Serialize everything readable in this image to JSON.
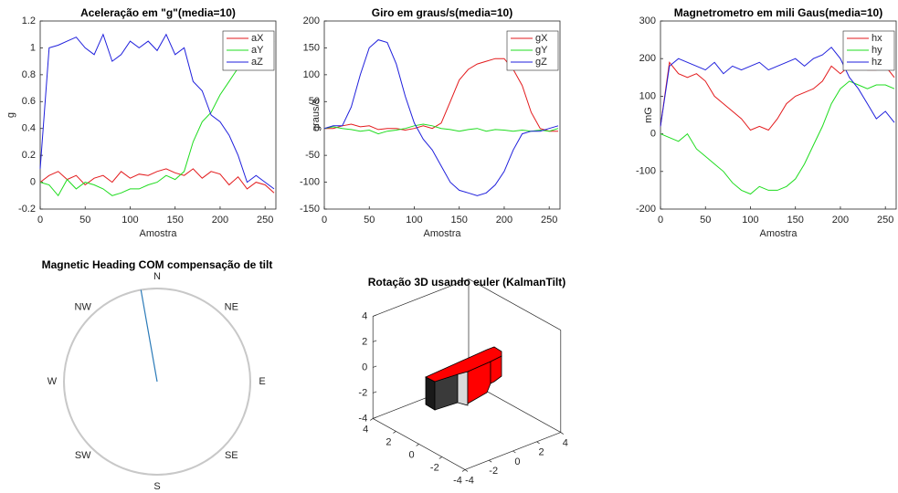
{
  "chart_data": [
    {
      "type": "line",
      "title": "Aceleração em \"g\"(media=10)",
      "xlabel": "Amostra",
      "ylabel": "g",
      "x": [
        0,
        10,
        20,
        30,
        40,
        50,
        60,
        70,
        80,
        90,
        100,
        110,
        120,
        130,
        140,
        150,
        160,
        170,
        180,
        190,
        200,
        210,
        220,
        230,
        240,
        250,
        260
      ],
      "xlim": [
        0,
        262
      ],
      "xticks": [
        0,
        50,
        100,
        150,
        200,
        250
      ],
      "ylim": [
        -0.2,
        1.2
      ],
      "yticks": [
        -0.2,
        0,
        0.2,
        0.4,
        0.6,
        0.8,
        1,
        1.2
      ],
      "legend": "upper right",
      "series": [
        {
          "name": "aX",
          "color": "#e31a1c",
          "values": [
            0,
            0.05,
            0.08,
            0.02,
            0.05,
            -0.02,
            0.03,
            0.05,
            0.0,
            0.08,
            0.03,
            0.06,
            0.05,
            0.08,
            0.1,
            0.07,
            0.05,
            0.1,
            0.03,
            0.08,
            0.06,
            -0.02,
            0.04,
            -0.05,
            0.0,
            -0.02,
            -0.08
          ]
        },
        {
          "name": "aY",
          "color": "#1fdc1f",
          "values": [
            0,
            -0.02,
            -0.1,
            0.02,
            -0.05,
            0.0,
            -0.02,
            -0.05,
            -0.1,
            -0.08,
            -0.05,
            -0.05,
            -0.02,
            0.0,
            0.05,
            0.02,
            0.08,
            0.3,
            0.45,
            0.52,
            0.65,
            0.75,
            0.85,
            0.9,
            0.93,
            1.0,
            1.05
          ]
        },
        {
          "name": "aZ",
          "color": "#1f1fdc",
          "values": [
            0.1,
            1.0,
            1.02,
            1.05,
            1.08,
            1.0,
            0.95,
            1.1,
            0.9,
            0.95,
            1.05,
            1.0,
            1.05,
            0.98,
            1.1,
            0.95,
            1.0,
            0.75,
            0.68,
            0.5,
            0.45,
            0.35,
            0.2,
            0.0,
            0.05,
            0.0,
            -0.05
          ]
        }
      ]
    },
    {
      "type": "line",
      "title": "Giro em graus/s(media=10)",
      "xlabel": "Amostra",
      "ylabel": "graus/s",
      "x": [
        0,
        10,
        20,
        30,
        40,
        50,
        60,
        70,
        80,
        90,
        100,
        110,
        120,
        130,
        140,
        150,
        160,
        170,
        180,
        190,
        200,
        210,
        220,
        230,
        240,
        250,
        260
      ],
      "xlim": [
        0,
        262
      ],
      "xticks": [
        0,
        50,
        100,
        150,
        200,
        250
      ],
      "ylim": [
        -150,
        200
      ],
      "yticks": [
        -150,
        -100,
        -50,
        0,
        50,
        100,
        150,
        200
      ],
      "legend": "upper right",
      "series": [
        {
          "name": "gX",
          "color": "#e31a1c",
          "values": [
            0,
            0,
            5,
            8,
            3,
            5,
            -2,
            0,
            0,
            -3,
            0,
            5,
            0,
            10,
            50,
            90,
            110,
            120,
            125,
            130,
            130,
            110,
            80,
            30,
            0,
            -5,
            -5
          ]
        },
        {
          "name": "gY",
          "color": "#1fdc1f",
          "values": [
            0,
            3,
            0,
            -2,
            -5,
            -3,
            -10,
            -5,
            -3,
            0,
            5,
            8,
            5,
            0,
            -2,
            -5,
            -2,
            0,
            -5,
            -2,
            -3,
            -5,
            -3,
            -5,
            -3,
            -5,
            0
          ]
        },
        {
          "name": "gZ",
          "color": "#1f1fdc",
          "values": [
            0,
            5,
            5,
            40,
            100,
            150,
            165,
            160,
            120,
            60,
            10,
            -20,
            -40,
            -70,
            -100,
            -115,
            -120,
            -125,
            -120,
            -105,
            -80,
            -40,
            -10,
            -5,
            -5,
            0,
            5
          ]
        }
      ]
    },
    {
      "type": "line",
      "title": "Magnetrometro em mili Gaus(media=10)",
      "xlabel": "Amostra",
      "ylabel": "mG",
      "x": [
        0,
        10,
        20,
        30,
        40,
        50,
        60,
        70,
        80,
        90,
        100,
        110,
        120,
        130,
        140,
        150,
        160,
        170,
        180,
        190,
        200,
        210,
        220,
        230,
        240,
        250,
        260
      ],
      "xlim": [
        0,
        262
      ],
      "xticks": [
        0,
        50,
        100,
        150,
        200,
        250
      ],
      "ylim": [
        -200,
        300
      ],
      "yticks": [
        -200,
        -100,
        0,
        100,
        200,
        300
      ],
      "legend": "upper right",
      "series": [
        {
          "name": "hx",
          "color": "#e31a1c",
          "values": [
            20,
            190,
            160,
            150,
            160,
            140,
            100,
            80,
            60,
            40,
            10,
            20,
            10,
            40,
            80,
            100,
            110,
            120,
            140,
            180,
            160,
            180,
            180,
            170,
            170,
            180,
            150
          ]
        },
        {
          "name": "hy",
          "color": "#1fdc1f",
          "values": [
            0,
            -10,
            -20,
            0,
            -40,
            -60,
            -80,
            -100,
            -130,
            -150,
            -160,
            -140,
            -150,
            -150,
            -140,
            -120,
            -80,
            -30,
            20,
            80,
            120,
            140,
            130,
            120,
            130,
            130,
            120
          ]
        },
        {
          "name": "hz",
          "color": "#1f1fdc",
          "values": [
            20,
            180,
            200,
            190,
            180,
            170,
            190,
            160,
            180,
            170,
            180,
            190,
            170,
            180,
            190,
            200,
            180,
            200,
            210,
            230,
            200,
            150,
            120,
            80,
            40,
            60,
            30
          ]
        }
      ]
    },
    {
      "type": "compass",
      "title": "Magnetic Heading COM compensação de tilt",
      "directions": [
        "N",
        "NE",
        "E",
        "SE",
        "S",
        "SW",
        "W",
        "NW"
      ],
      "heading": 350,
      "color": "#2a7ab8"
    },
    {
      "type": "box3d",
      "title": "Rotação 3D usando euler (KalmanTilt)",
      "xlim": [
        -4,
        4
      ],
      "ylim": [
        -4,
        4
      ],
      "zlim": [
        -4,
        4
      ],
      "xticks": [
        -4,
        -2,
        0,
        2,
        4
      ],
      "yticks": [
        -4,
        -2,
        0,
        2,
        4
      ],
      "zticks": [
        -4,
        -2,
        0,
        2,
        4
      ]
    }
  ]
}
